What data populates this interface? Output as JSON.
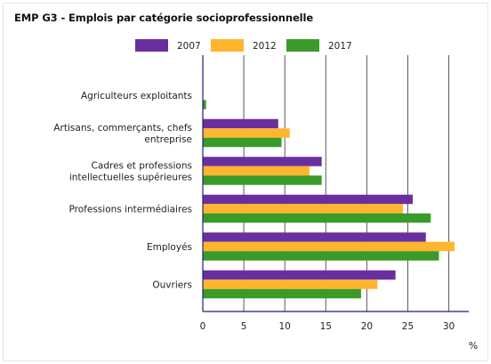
{
  "chart_data": {
    "type": "bar",
    "orientation": "horizontal",
    "title": "EMP G3 - Emplois par catégorie socioprofessionnelle",
    "unit_label": "%",
    "categories": [
      [
        "Agriculteurs exploitants"
      ],
      [
        "Artisans, commerçants, chefs",
        "entreprise"
      ],
      [
        "Cadres et professions",
        "intellectuelles supérieures"
      ],
      [
        "Professions intermédiaires"
      ],
      [
        "Employés"
      ],
      [
        "Ouvriers"
      ]
    ],
    "series": [
      {
        "name": "2007",
        "color": "#6a2f9e",
        "values": [
          0,
          9.2,
          14.5,
          25.6,
          27.2,
          23.5
        ]
      },
      {
        "name": "2012",
        "color": "#ffb62e",
        "values": [
          0,
          10.6,
          13.0,
          24.4,
          30.7,
          21.3
        ]
      },
      {
        "name": "2017",
        "color": "#3a9a2a",
        "values": [
          0.4,
          9.6,
          14.5,
          27.8,
          28.8,
          19.3
        ]
      }
    ],
    "xlim": [
      0,
      32
    ],
    "xticks": [
      0,
      5,
      10,
      15,
      20,
      25,
      30
    ],
    "grid": true,
    "legend_position": "top-center"
  }
}
